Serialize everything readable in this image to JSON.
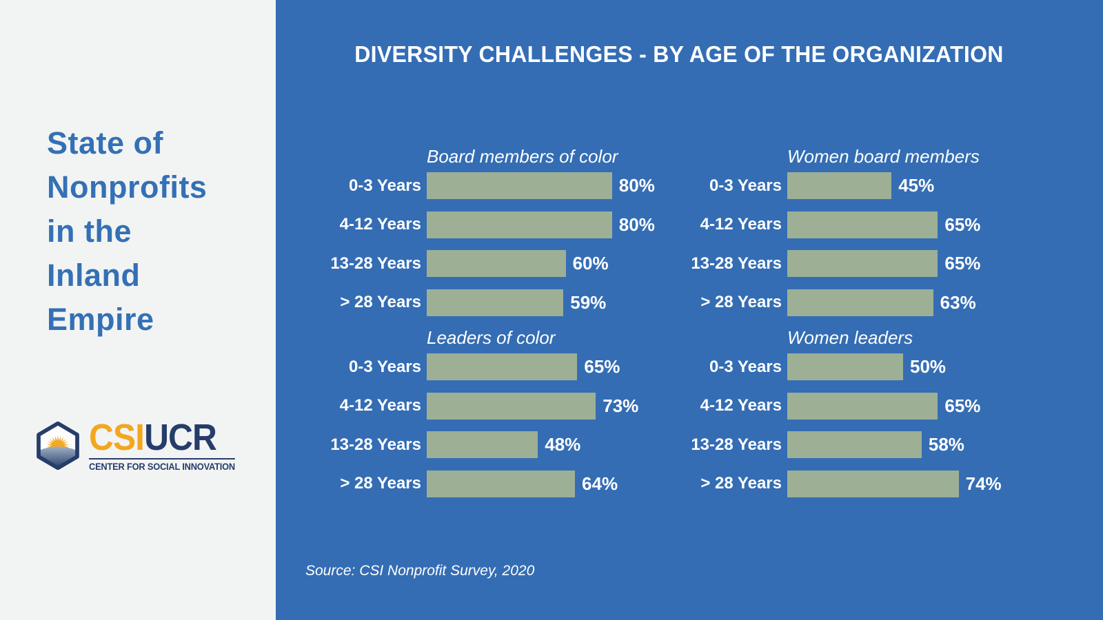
{
  "colors": {
    "panel_left_bg": "#F2F4F3",
    "panel_right_bg": "#346DB4",
    "title_blue": "#3470B5",
    "bar_green": "#9DB096",
    "logo_gold": "#F2A71F",
    "logo_navy": "#263C6A",
    "text_white": "#FFFFFF"
  },
  "sidebar": {
    "title": "State of\nNonprofits\nin the\nInland\nEmpire",
    "logo": {
      "icon": "hexagon-sunrise-icon",
      "csi": "CSI",
      "ucr": "UCR",
      "tagline": "CENTER FOR SOCIAL INNOVATION"
    }
  },
  "main": {
    "heading": "DIVERSITY CHALLENGES - BY AGE OF THE ORGANIZATION",
    "source": "Source: CSI Nonprofit Survey, 2020"
  },
  "chart_data": [
    {
      "type": "bar",
      "orientation": "horizontal",
      "title": "Board members of color",
      "categories": [
        "0-3 Years",
        "4-12 Years",
        "13-28 Years",
        "> 28 Years"
      ],
      "values": [
        80,
        80,
        60,
        59
      ],
      "unit": "%",
      "bar_color": "#9DB096",
      "xlim": [
        0,
        100
      ],
      "grid": false,
      "value_labels": "outside-end"
    },
    {
      "type": "bar",
      "orientation": "horizontal",
      "title": "Women board members",
      "categories": [
        "0-3 Years",
        "4-12 Years",
        "13-28 Years",
        "> 28 Years"
      ],
      "values": [
        45,
        65,
        65,
        63
      ],
      "unit": "%",
      "bar_color": "#9DB096",
      "xlim": [
        0,
        100
      ],
      "grid": false,
      "value_labels": "outside-end"
    },
    {
      "type": "bar",
      "orientation": "horizontal",
      "title": "Leaders of color",
      "categories": [
        "0-3 Years",
        "4-12 Years",
        "13-28 Years",
        "> 28 Years"
      ],
      "values": [
        65,
        73,
        48,
        64
      ],
      "unit": "%",
      "bar_color": "#9DB096",
      "xlim": [
        0,
        100
      ],
      "grid": false,
      "value_labels": "outside-end"
    },
    {
      "type": "bar",
      "orientation": "horizontal",
      "title": "Women leaders",
      "categories": [
        "0-3 Years",
        "4-12 Years",
        "13-28 Years",
        "> 28 Years"
      ],
      "values": [
        50,
        65,
        58,
        74
      ],
      "unit": "%",
      "bar_color": "#9DB096",
      "xlim": [
        0,
        100
      ],
      "grid": false,
      "value_labels": "outside-end"
    }
  ]
}
